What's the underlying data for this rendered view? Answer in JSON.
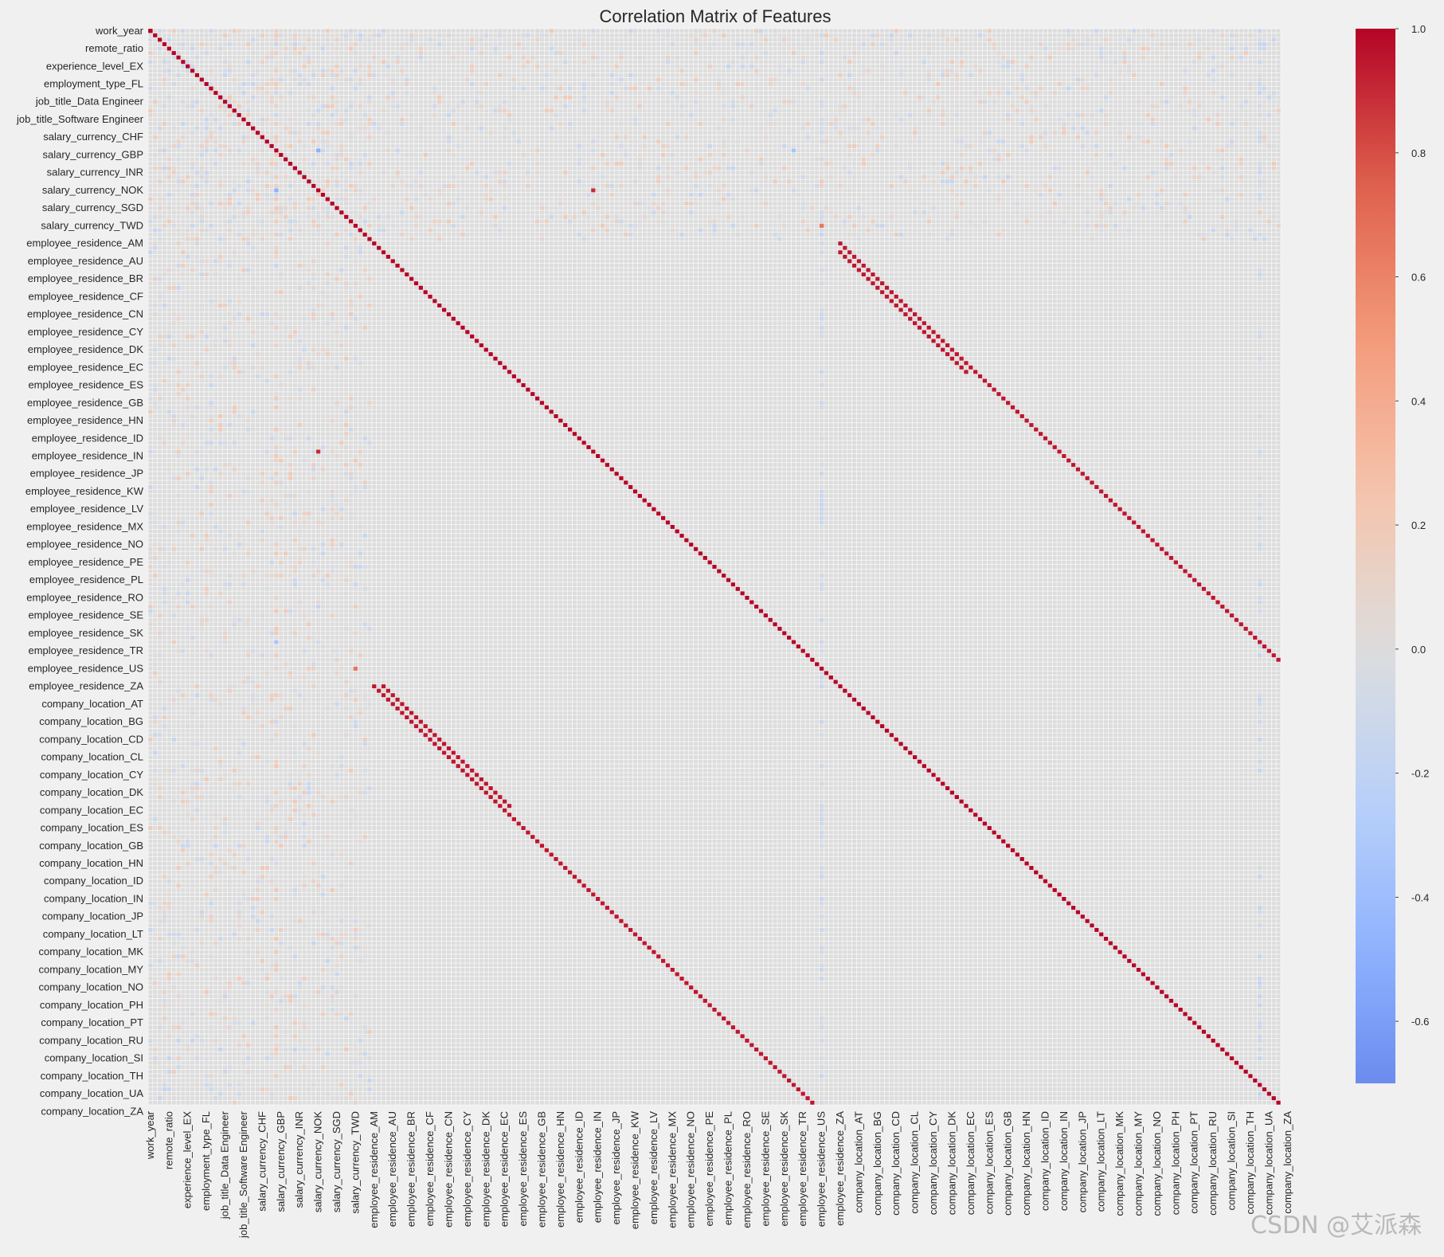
{
  "chart_data": {
    "type": "heatmap",
    "title": "Correlation Matrix of Features",
    "n": 243,
    "xlabel": "",
    "ylabel": "",
    "colormap": "coolwarm",
    "colorbar": {
      "min": -0.7,
      "max": 1.0,
      "ticks": [
        "1.0",
        "0.8",
        "0.6",
        "0.4",
        "0.2",
        "0.0",
        "-0.2",
        "-0.4",
        "-0.6"
      ]
    },
    "y_tick_labels": [
      "work_year",
      "remote_ratio",
      "experience_level_EX",
      "employment_type_FL",
      "job_title_Data Engineer",
      "job_title_Software Engineer",
      "salary_currency_CHF",
      "salary_currency_GBP",
      "salary_currency_INR",
      "salary_currency_NOK",
      "salary_currency_SGD",
      "salary_currency_TWD",
      "employee_residence_AM",
      "employee_residence_AU",
      "employee_residence_BR",
      "employee_residence_CF",
      "employee_residence_CN",
      "employee_residence_CY",
      "employee_residence_DK",
      "employee_residence_EC",
      "employee_residence_ES",
      "employee_residence_GB",
      "employee_residence_HN",
      "employee_residence_ID",
      "employee_residence_IN",
      "employee_residence_JP",
      "employee_residence_KW",
      "employee_residence_LV",
      "employee_residence_MX",
      "employee_residence_NO",
      "employee_residence_PE",
      "employee_residence_PL",
      "employee_residence_RO",
      "employee_residence_SE",
      "employee_residence_SK",
      "employee_residence_TR",
      "employee_residence_US",
      "employee_residence_ZA",
      "company_location_AT",
      "company_location_BG",
      "company_location_CD",
      "company_location_CL",
      "company_location_CY",
      "company_location_DK",
      "company_location_EC",
      "company_location_ES",
      "company_location_GB",
      "company_location_HN",
      "company_location_ID",
      "company_location_IN",
      "company_location_JP",
      "company_location_LT",
      "company_location_MK",
      "company_location_MY",
      "company_location_NO",
      "company_location_PH",
      "company_location_PT",
      "company_location_RU",
      "company_location_SI",
      "company_location_TH",
      "company_location_UA",
      "company_location_ZA"
    ],
    "x_tick_labels": [
      "work_year",
      "remote_ratio",
      "experience_level_EX",
      "employment_type_FL",
      "job_title_Data Engineer",
      "job_title_Software Engineer",
      "salary_currency_CHF",
      "salary_currency_GBP",
      "salary_currency_INR",
      "salary_currency_NOK",
      "salary_currency_SGD",
      "salary_currency_TWD",
      "employee_residence_AM",
      "employee_residence_AU",
      "employee_residence_BR",
      "employee_residence_CF",
      "employee_residence_CN",
      "employee_residence_CY",
      "employee_residence_DK",
      "employee_residence_EC",
      "employee_residence_ES",
      "employee_residence_GB",
      "employee_residence_HN",
      "employee_residence_ID",
      "employee_residence_IN",
      "employee_residence_JP",
      "employee_residence_KW",
      "employee_residence_LV",
      "employee_residence_MX",
      "employee_residence_NO",
      "employee_residence_PE",
      "employee_residence_PL",
      "employee_residence_RO",
      "employee_residence_SE",
      "employee_residence_SK",
      "employee_residence_TR",
      "employee_residence_US",
      "employee_residence_ZA",
      "company_location_AT",
      "company_location_BG",
      "company_location_CD",
      "company_location_CL",
      "company_location_CY",
      "company_location_DK",
      "company_location_EC",
      "company_location_ES",
      "company_location_GB",
      "company_location_HN",
      "company_location_ID",
      "company_location_IN",
      "company_location_JP",
      "company_location_LT",
      "company_location_MK",
      "company_location_MY",
      "company_location_NO",
      "company_location_PH",
      "company_location_PT",
      "company_location_RU",
      "company_location_SI",
      "company_location_TH",
      "company_location_UA",
      "company_location_ZA"
    ],
    "tick_positions": [
      0,
      4,
      8,
      12,
      16,
      20,
      24,
      28,
      32,
      36,
      40,
      44,
      48,
      52,
      56,
      60,
      64,
      68,
      72,
      76,
      80,
      84,
      88,
      92,
      96,
      100,
      104,
      108,
      112,
      116,
      120,
      124,
      128,
      132,
      136,
      140,
      144,
      148,
      152,
      156,
      160,
      164,
      168,
      172,
      176,
      180,
      184,
      188,
      192,
      196,
      200,
      204,
      208,
      212,
      216,
      220,
      224,
      228,
      232,
      236,
      240,
      244
    ],
    "strong_off_diagonal_bands": [
      {
        "from_row": 48,
        "to_row": 148,
        "col_offset": 100,
        "value": 0.95,
        "note": "employee_residence vs company_location"
      },
      {
        "from_row": 148,
        "to_row": 176,
        "col_offset": -98,
        "value": 0.95,
        "note": "company_location vs employee_residence"
      }
    ],
    "notable_cells": [
      {
        "row": 0,
        "col": 0,
        "value": 1.0
      },
      {
        "row": 144,
        "col": 44,
        "value": 0.6
      },
      {
        "row": 36,
        "col": 95,
        "value": 0.9
      },
      {
        "row": 44,
        "col": 144,
        "value": 0.65
      },
      {
        "row": 27,
        "col": 36,
        "value": -0.5
      },
      {
        "row": 138,
        "col": 27,
        "value": -0.35
      }
    ]
  },
  "watermark": "CSDN @艾派森"
}
